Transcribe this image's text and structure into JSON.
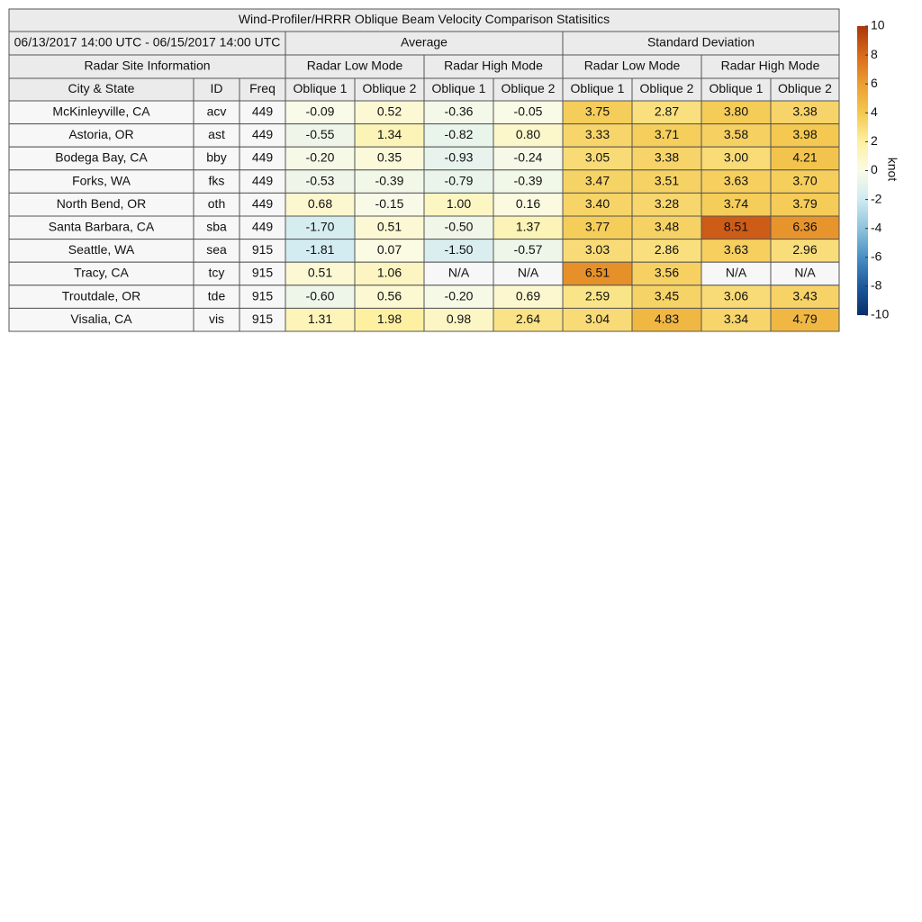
{
  "title": "Wind-Profiler/HRRR Oblique Beam Velocity Comparison Statisitics",
  "header": {
    "date_range": "06/13/2017 14:00 UTC - 06/15/2017 14:00 UTC",
    "average": "Average",
    "standard_deviation": "Standard Deviation",
    "site_info": "Radar Site Information",
    "groups": [
      "Radar Low Mode",
      "Radar High Mode",
      "Radar Low Mode",
      "Radar High Mode"
    ],
    "columns": [
      "City & State",
      "ID",
      "Freq",
      "Oblique 1",
      "Oblique 2",
      "Oblique 1",
      "Oblique 2",
      "Oblique 1",
      "Oblique 2",
      "Oblique 1",
      "Oblique 2"
    ]
  },
  "rows": [
    [
      "McKinleyville, CA",
      "acv",
      "449",
      "-0.09",
      "0.52",
      "-0.36",
      "-0.05",
      "3.75",
      "2.87",
      "3.80",
      "3.38"
    ],
    [
      "Astoria, OR",
      "ast",
      "449",
      "-0.55",
      "1.34",
      "-0.82",
      "0.80",
      "3.33",
      "3.71",
      "3.58",
      "3.98"
    ],
    [
      "Bodega Bay, CA",
      "bby",
      "449",
      "-0.20",
      "0.35",
      "-0.93",
      "-0.24",
      "3.05",
      "3.38",
      "3.00",
      "4.21"
    ],
    [
      "Forks, WA",
      "fks",
      "449",
      "-0.53",
      "-0.39",
      "-0.79",
      "-0.39",
      "3.47",
      "3.51",
      "3.63",
      "3.70"
    ],
    [
      "North Bend, OR",
      "oth",
      "449",
      "0.68",
      "-0.15",
      "1.00",
      "0.16",
      "3.40",
      "3.28",
      "3.74",
      "3.79"
    ],
    [
      "Santa Barbara, CA",
      "sba",
      "449",
      "-1.70",
      "0.51",
      "-0.50",
      "1.37",
      "3.77",
      "3.48",
      "8.51",
      "6.36"
    ],
    [
      "Seattle, WA",
      "sea",
      "915",
      "-1.81",
      "0.07",
      "-1.50",
      "-0.57",
      "3.03",
      "2.86",
      "3.63",
      "2.96"
    ],
    [
      "Tracy, CA",
      "tcy",
      "915",
      "0.51",
      "1.06",
      "N/A",
      "N/A",
      "6.51",
      "3.56",
      "N/A",
      "N/A"
    ],
    [
      "Troutdale, OR",
      "tde",
      "915",
      "-0.60",
      "0.56",
      "-0.20",
      "0.69",
      "2.59",
      "3.45",
      "3.06",
      "3.43"
    ],
    [
      "Visalia, CA",
      "vis",
      "915",
      "1.31",
      "1.98",
      "0.98",
      "2.64",
      "3.04",
      "4.83",
      "3.34",
      "4.79"
    ]
  ],
  "colorbar": {
    "label": "knot",
    "ticks": [
      10,
      8,
      6,
      4,
      2,
      0,
      -2,
      -4,
      -6,
      -8,
      -10
    ],
    "colors": [
      "#08306b",
      "#1d5a9c",
      "#4a8fc4",
      "#8ec3dc",
      "#cfeaf2",
      "#fbfbe6",
      "#fdf0a0",
      "#f4c850",
      "#eb9e30",
      "#d9691a",
      "#a8360a"
    ]
  }
}
